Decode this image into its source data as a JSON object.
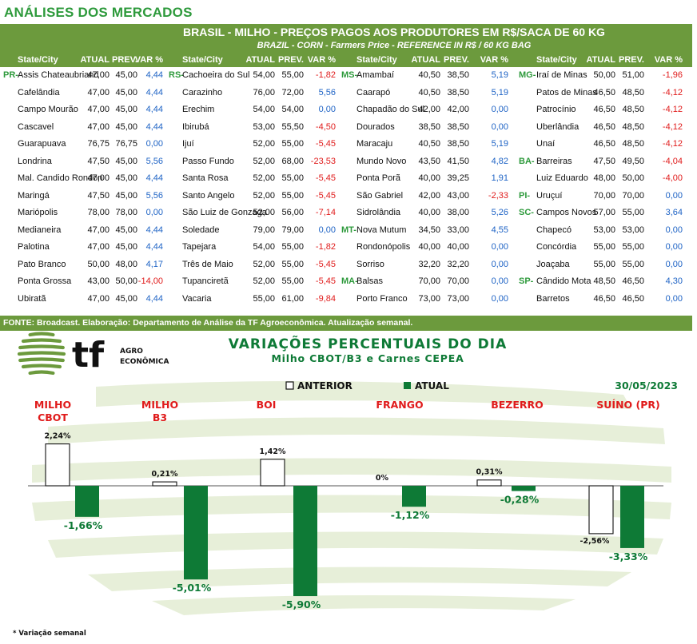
{
  "page_title": "ANÁLISES DOS MERCADOS",
  "table": {
    "title": "BRASIL - MILHO - PREÇOS PAGOS AOS PRODUTORES EM R$/SACA DE 60 KG",
    "subtitle": "BRAZIL - CORN - Farmers Price - REFERENCE IN R$ / 60 KG BAG",
    "headers": [
      "State/City",
      "ATUAL",
      "PREV.",
      "VAR %"
    ],
    "columns": [
      [
        {
          "region": "PR-",
          "city": "Assis Chateaubriand",
          "atual": "47,00",
          "prev": "45,00",
          "var": "4,44"
        },
        {
          "region": "",
          "city": "Cafelândia",
          "atual": "47,00",
          "prev": "45,00",
          "var": "4,44"
        },
        {
          "region": "",
          "city": "Campo Mourão",
          "atual": "47,00",
          "prev": "45,00",
          "var": "4,44"
        },
        {
          "region": "",
          "city": "Cascavel",
          "atual": "47,00",
          "prev": "45,00",
          "var": "4,44"
        },
        {
          "region": "",
          "city": "Guarapuava",
          "atual": "76,75",
          "prev": "76,75",
          "var": "0,00"
        },
        {
          "region": "",
          "city": "Londrina",
          "atual": "47,50",
          "prev": "45,00",
          "var": "5,56"
        },
        {
          "region": "",
          "city": "Mal. Candido Rondon",
          "atual": "47,00",
          "prev": "45,00",
          "var": "4,44"
        },
        {
          "region": "",
          "city": "Maringá",
          "atual": "47,50",
          "prev": "45,00",
          "var": "5,56"
        },
        {
          "region": "",
          "city": "Mariópolis",
          "atual": "78,00",
          "prev": "78,00",
          "var": "0,00"
        },
        {
          "region": "",
          "city": "Medianeira",
          "atual": "47,00",
          "prev": "45,00",
          "var": "4,44"
        },
        {
          "region": "",
          "city": "Palotina",
          "atual": "47,00",
          "prev": "45,00",
          "var": "4,44"
        },
        {
          "region": "",
          "city": "Pato Branco",
          "atual": "50,00",
          "prev": "48,00",
          "var": "4,17"
        },
        {
          "region": "",
          "city": "Ponta Grossa",
          "atual": "43,00",
          "prev": "50,00",
          "var": "-14,00"
        },
        {
          "region": "",
          "city": "Ubiratã",
          "atual": "47,00",
          "prev": "45,00",
          "var": "4,44"
        }
      ],
      [
        {
          "region": "RS-",
          "city": "Cachoeira do Sul",
          "atual": "54,00",
          "prev": "55,00",
          "var": "-1,82"
        },
        {
          "region": "",
          "city": "Carazinho",
          "atual": "76,00",
          "prev": "72,00",
          "var": "5,56"
        },
        {
          "region": "",
          "city": "Erechim",
          "atual": "54,00",
          "prev": "54,00",
          "var": "0,00"
        },
        {
          "region": "",
          "city": "Ibirubá",
          "atual": "53,00",
          "prev": "55,50",
          "var": "-4,50"
        },
        {
          "region": "",
          "city": "Ijuí",
          "atual": "52,00",
          "prev": "55,00",
          "var": "-5,45"
        },
        {
          "region": "",
          "city": "Passo Fundo",
          "atual": "52,00",
          "prev": "68,00",
          "var": "-23,53"
        },
        {
          "region": "",
          "city": "Santa Rosa",
          "atual": "52,00",
          "prev": "55,00",
          "var": "-5,45"
        },
        {
          "region": "",
          "city": "Santo Angelo",
          "atual": "52,00",
          "prev": "55,00",
          "var": "-5,45"
        },
        {
          "region": "",
          "city": "São Luiz de Gonzaga",
          "atual": "52,00",
          "prev": "56,00",
          "var": "-7,14"
        },
        {
          "region": "",
          "city": "Soledade",
          "atual": "79,00",
          "prev": "79,00",
          "var": "0,00"
        },
        {
          "region": "",
          "city": "Tapejara",
          "atual": "54,00",
          "prev": "55,00",
          "var": "-1,82"
        },
        {
          "region": "",
          "city": "Três de Maio",
          "atual": "52,00",
          "prev": "55,00",
          "var": "-5,45"
        },
        {
          "region": "",
          "city": "Tupanciretã",
          "atual": "52,00",
          "prev": "55,00",
          "var": "-5,45"
        },
        {
          "region": "",
          "city": "Vacaria",
          "atual": "55,00",
          "prev": "61,00",
          "var": "-9,84"
        }
      ],
      [
        {
          "region": "MS-",
          "city": "Amambaí",
          "atual": "40,50",
          "prev": "38,50",
          "var": "5,19"
        },
        {
          "region": "",
          "city": "Caarapó",
          "atual": "40,50",
          "prev": "38,50",
          "var": "5,19"
        },
        {
          "region": "",
          "city": "Chapadão do Sul",
          "atual": "42,00",
          "prev": "42,00",
          "var": "0,00"
        },
        {
          "region": "",
          "city": "Dourados",
          "atual": "38,50",
          "prev": "38,50",
          "var": "0,00"
        },
        {
          "region": "",
          "city": "Maracaju",
          "atual": "40,50",
          "prev": "38,50",
          "var": "5,19"
        },
        {
          "region": "",
          "city": "Mundo Novo",
          "atual": "43,50",
          "prev": "41,50",
          "var": "4,82"
        },
        {
          "region": "",
          "city": "Ponta Porã",
          "atual": "40,00",
          "prev": "39,25",
          "var": "1,91"
        },
        {
          "region": "",
          "city": "São Gabriel",
          "atual": "42,00",
          "prev": "43,00",
          "var": "-2,33"
        },
        {
          "region": "",
          "city": "Sidrolândia",
          "atual": "40,00",
          "prev": "38,00",
          "var": "5,26"
        },
        {
          "region": "MT-",
          "city": "Nova Mutum",
          "atual": "34,50",
          "prev": "33,00",
          "var": "4,55"
        },
        {
          "region": "",
          "city": "Rondonópolis",
          "atual": "40,00",
          "prev": "40,00",
          "var": "0,00"
        },
        {
          "region": "",
          "city": "Sorriso",
          "atual": "32,20",
          "prev": "32,20",
          "var": "0,00"
        },
        {
          "region": "MA-",
          "city": "Balsas",
          "atual": "70,00",
          "prev": "70,00",
          "var": "0,00"
        },
        {
          "region": "",
          "city": "Porto Franco",
          "atual": "73,00",
          "prev": "73,00",
          "var": "0,00"
        }
      ],
      [
        {
          "region": "MG-",
          "city": "Iraí de Minas",
          "atual": "50,00",
          "prev": "51,00",
          "var": "-1,96"
        },
        {
          "region": "",
          "city": "Patos de Minas",
          "atual": "46,50",
          "prev": "48,50",
          "var": "-4,12"
        },
        {
          "region": "",
          "city": "Patrocínio",
          "atual": "46,50",
          "prev": "48,50",
          "var": "-4,12"
        },
        {
          "region": "",
          "city": "Uberlândia",
          "atual": "46,50",
          "prev": "48,50",
          "var": "-4,12"
        },
        {
          "region": "",
          "city": "Unaí",
          "atual": "46,50",
          "prev": "48,50",
          "var": "-4,12"
        },
        {
          "region": "BA-",
          "city": "Barreiras",
          "atual": "47,50",
          "prev": "49,50",
          "var": "-4,04"
        },
        {
          "region": "",
          "city": "Luiz Eduardo",
          "atual": "48,00",
          "prev": "50,00",
          "var": "-4,00"
        },
        {
          "region": "PI-",
          "city": "Uruçuí",
          "atual": "70,00",
          "prev": "70,00",
          "var": "0,00"
        },
        {
          "region": "SC-",
          "city": "Campos Novos",
          "atual": "57,00",
          "prev": "55,00",
          "var": "3,64"
        },
        {
          "region": "",
          "city": "Chapecó",
          "atual": "53,00",
          "prev": "53,00",
          "var": "0,00"
        },
        {
          "region": "",
          "city": "Concórdia",
          "atual": "55,00",
          "prev": "55,00",
          "var": "0,00"
        },
        {
          "region": "",
          "city": "Joaçaba",
          "atual": "55,00",
          "prev": "55,00",
          "var": "0,00"
        },
        {
          "region": "SP-",
          "city": "Cândido Mota",
          "atual": "48,50",
          "prev": "46,50",
          "var": "4,30"
        },
        {
          "region": "",
          "city": "Barretos",
          "atual": "46,50",
          "prev": "46,50",
          "var": "0,00"
        }
      ]
    ],
    "source": "FONTE: Broadcast. Elaboração: Departamento de Análise da TF Agroeconômica. Atualização semanal."
  },
  "logo": {
    "brand": "tf",
    "line1": "AGRO",
    "line2": "ECONÔMICA"
  },
  "colors": {
    "green": "#6c9a3d",
    "dark_green": "#0e7a36",
    "title_green": "#2e9a3c",
    "red": "#e01b1b",
    "blue": "#1e63c5",
    "wave": "#e3ecd2"
  },
  "chart_data": {
    "type": "bar",
    "title": "VARIAÇÕES PERCENTUAIS DO DIA",
    "subtitle": "Milho CBOT/B3 e Carnes CEPEA",
    "date": "30/05/2023",
    "categories": [
      "MILHO CBOT",
      "MILHO B3",
      "BOI",
      "FRANGO",
      "BEZERRO",
      "SUÍNO (PR)"
    ],
    "category_lines": [
      [
        "MILHO",
        "CBOT"
      ],
      [
        "MILHO",
        "B3"
      ],
      [
        "BOI"
      ],
      [
        "FRANGO"
      ],
      [
        "BEZERRO"
      ],
      [
        "SUÍNO (PR)"
      ]
    ],
    "series": [
      {
        "name": "ANTERIOR",
        "values": [
          2.24,
          0.21,
          1.42,
          0,
          0.31,
          -2.56
        ],
        "labels": [
          "2,24%",
          "0,21%",
          "1,42%",
          "0%",
          "0,31%",
          "-2,56%"
        ]
      },
      {
        "name": "ATUAL",
        "values": [
          -1.66,
          -5.01,
          -5.9,
          -1.12,
          -0.28,
          -3.33
        ],
        "labels": [
          "-1,66%",
          "-5,01%",
          "-5,90%",
          "-1,12%",
          "-0,28%",
          "-3,33%"
        ]
      }
    ],
    "legend": "top",
    "grid": false,
    "footnote": "* Variação semanal"
  }
}
